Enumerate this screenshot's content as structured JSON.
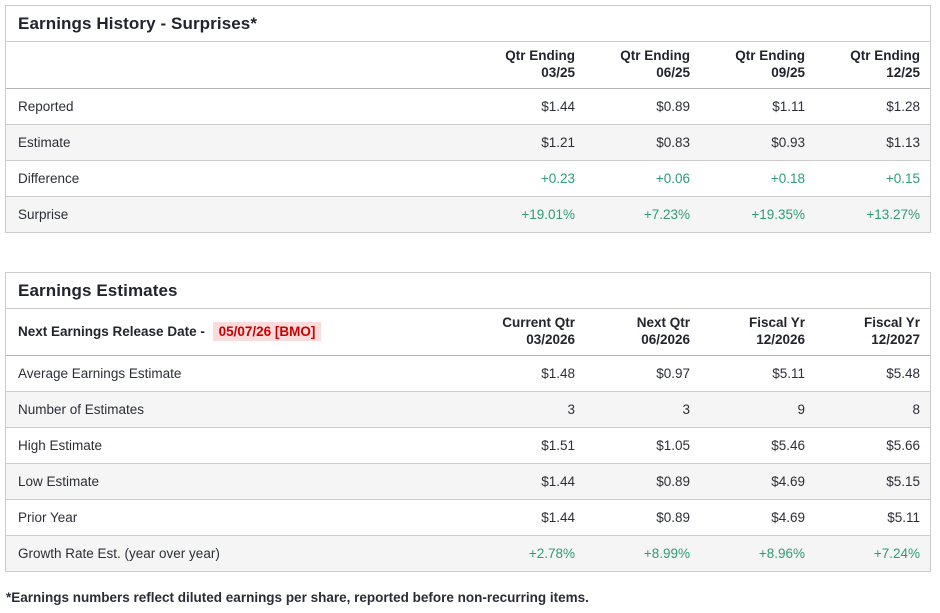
{
  "colors": {
    "text": "#2d2f38",
    "positive_green": "#2e9c76",
    "alert_red": "#cc0000",
    "alert_background": "#fbdcdc",
    "row_stripe": "#f5f5f5",
    "border": "#cccccc"
  },
  "earnings_history": {
    "title": "Earnings History - Surprises*",
    "columns": [
      {
        "line1": "Qtr Ending",
        "line2": "03/25"
      },
      {
        "line1": "Qtr Ending",
        "line2": "06/25"
      },
      {
        "line1": "Qtr Ending",
        "line2": "09/25"
      },
      {
        "line1": "Qtr Ending",
        "line2": "12/25"
      }
    ],
    "rows": [
      {
        "label": "Reported",
        "values": [
          "$1.44",
          "$0.89",
          "$1.11",
          "$1.28"
        ],
        "value_style": "default"
      },
      {
        "label": "Estimate",
        "values": [
          "$1.21",
          "$0.83",
          "$0.93",
          "$1.13"
        ],
        "value_style": "default"
      },
      {
        "label": "Difference",
        "values": [
          "+0.23",
          "+0.06",
          "+0.18",
          "+0.15"
        ],
        "value_style": "positive"
      },
      {
        "label": "Surprise",
        "values": [
          "+19.01%",
          "+7.23%",
          "+19.35%",
          "+13.27%"
        ],
        "value_style": "positive"
      }
    ]
  },
  "earnings_estimates": {
    "title": "Earnings Estimates",
    "release_date_label": "Next Earnings Release Date -",
    "release_date_value": "05/07/26 [BMO]",
    "columns": [
      {
        "line1": "Current Qtr",
        "line2": "03/2026"
      },
      {
        "line1": "Next Qtr",
        "line2": "06/2026"
      },
      {
        "line1": "Fiscal Yr",
        "line2": "12/2026"
      },
      {
        "line1": "Fiscal Yr",
        "line2": "12/2027"
      }
    ],
    "rows": [
      {
        "label": "Average Earnings Estimate",
        "values": [
          "$1.48",
          "$0.97",
          "$5.11",
          "$5.48"
        ],
        "value_style": "default"
      },
      {
        "label": "Number of Estimates",
        "values": [
          "3",
          "3",
          "9",
          "8"
        ],
        "value_style": "default"
      },
      {
        "label": "High Estimate",
        "values": [
          "$1.51",
          "$1.05",
          "$5.46",
          "$5.66"
        ],
        "value_style": "default"
      },
      {
        "label": "Low Estimate",
        "values": [
          "$1.44",
          "$0.89",
          "$4.69",
          "$5.15"
        ],
        "value_style": "default"
      },
      {
        "label": "Prior Year",
        "values": [
          "$1.44",
          "$0.89",
          "$4.69",
          "$5.11"
        ],
        "value_style": "default"
      },
      {
        "label": "Growth Rate Est. (year over year)",
        "values": [
          "+2.78%",
          "+8.99%",
          "+8.96%",
          "+7.24%"
        ],
        "value_style": "positive"
      }
    ]
  },
  "footnote": "*Earnings numbers reflect diluted earnings per share, reported before non-recurring items."
}
